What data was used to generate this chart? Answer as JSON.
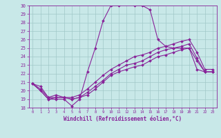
{
  "xlabel": "Windchill (Refroidissement éolien,°C)",
  "xlim": [
    -0.5,
    23.5
  ],
  "ylim": [
    18,
    30
  ],
  "xticks": [
    0,
    1,
    2,
    3,
    4,
    5,
    6,
    7,
    8,
    9,
    10,
    11,
    12,
    13,
    14,
    15,
    16,
    17,
    18,
    19,
    20,
    21,
    22,
    23
  ],
  "yticks": [
    18,
    19,
    20,
    21,
    22,
    23,
    24,
    25,
    26,
    27,
    28,
    29,
    30
  ],
  "bg_color": "#c8e8e8",
  "line_color": "#882299",
  "grid_color": "#a0c8c8",
  "lines": [
    [
      20.8,
      20.0,
      19.0,
      19.0,
      19.0,
      18.2,
      19.0,
      22.2,
      25.0,
      28.2,
      30.0,
      30.0,
      30.2,
      30.0,
      30.0,
      29.5,
      26.0,
      25.2,
      25.0,
      25.0,
      25.0,
      23.5,
      22.2,
      22.2
    ],
    [
      20.8,
      20.0,
      19.0,
      19.2,
      19.2,
      19.0,
      19.2,
      19.5,
      20.2,
      21.0,
      21.8,
      22.2,
      22.5,
      22.8,
      23.0,
      23.5,
      24.0,
      24.2,
      24.5,
      24.8,
      25.0,
      22.5,
      22.2,
      22.2
    ],
    [
      20.8,
      20.2,
      19.2,
      19.2,
      19.2,
      19.0,
      19.2,
      19.8,
      20.5,
      21.2,
      22.0,
      22.5,
      23.0,
      23.2,
      23.5,
      24.0,
      24.5,
      24.8,
      25.0,
      25.2,
      25.5,
      23.8,
      22.2,
      22.2
    ],
    [
      20.8,
      20.5,
      19.2,
      19.5,
      19.2,
      19.2,
      19.5,
      20.2,
      21.0,
      21.8,
      22.5,
      23.0,
      23.5,
      24.0,
      24.2,
      24.5,
      25.0,
      25.2,
      25.5,
      25.8,
      26.0,
      24.5,
      22.5,
      22.5
    ]
  ]
}
